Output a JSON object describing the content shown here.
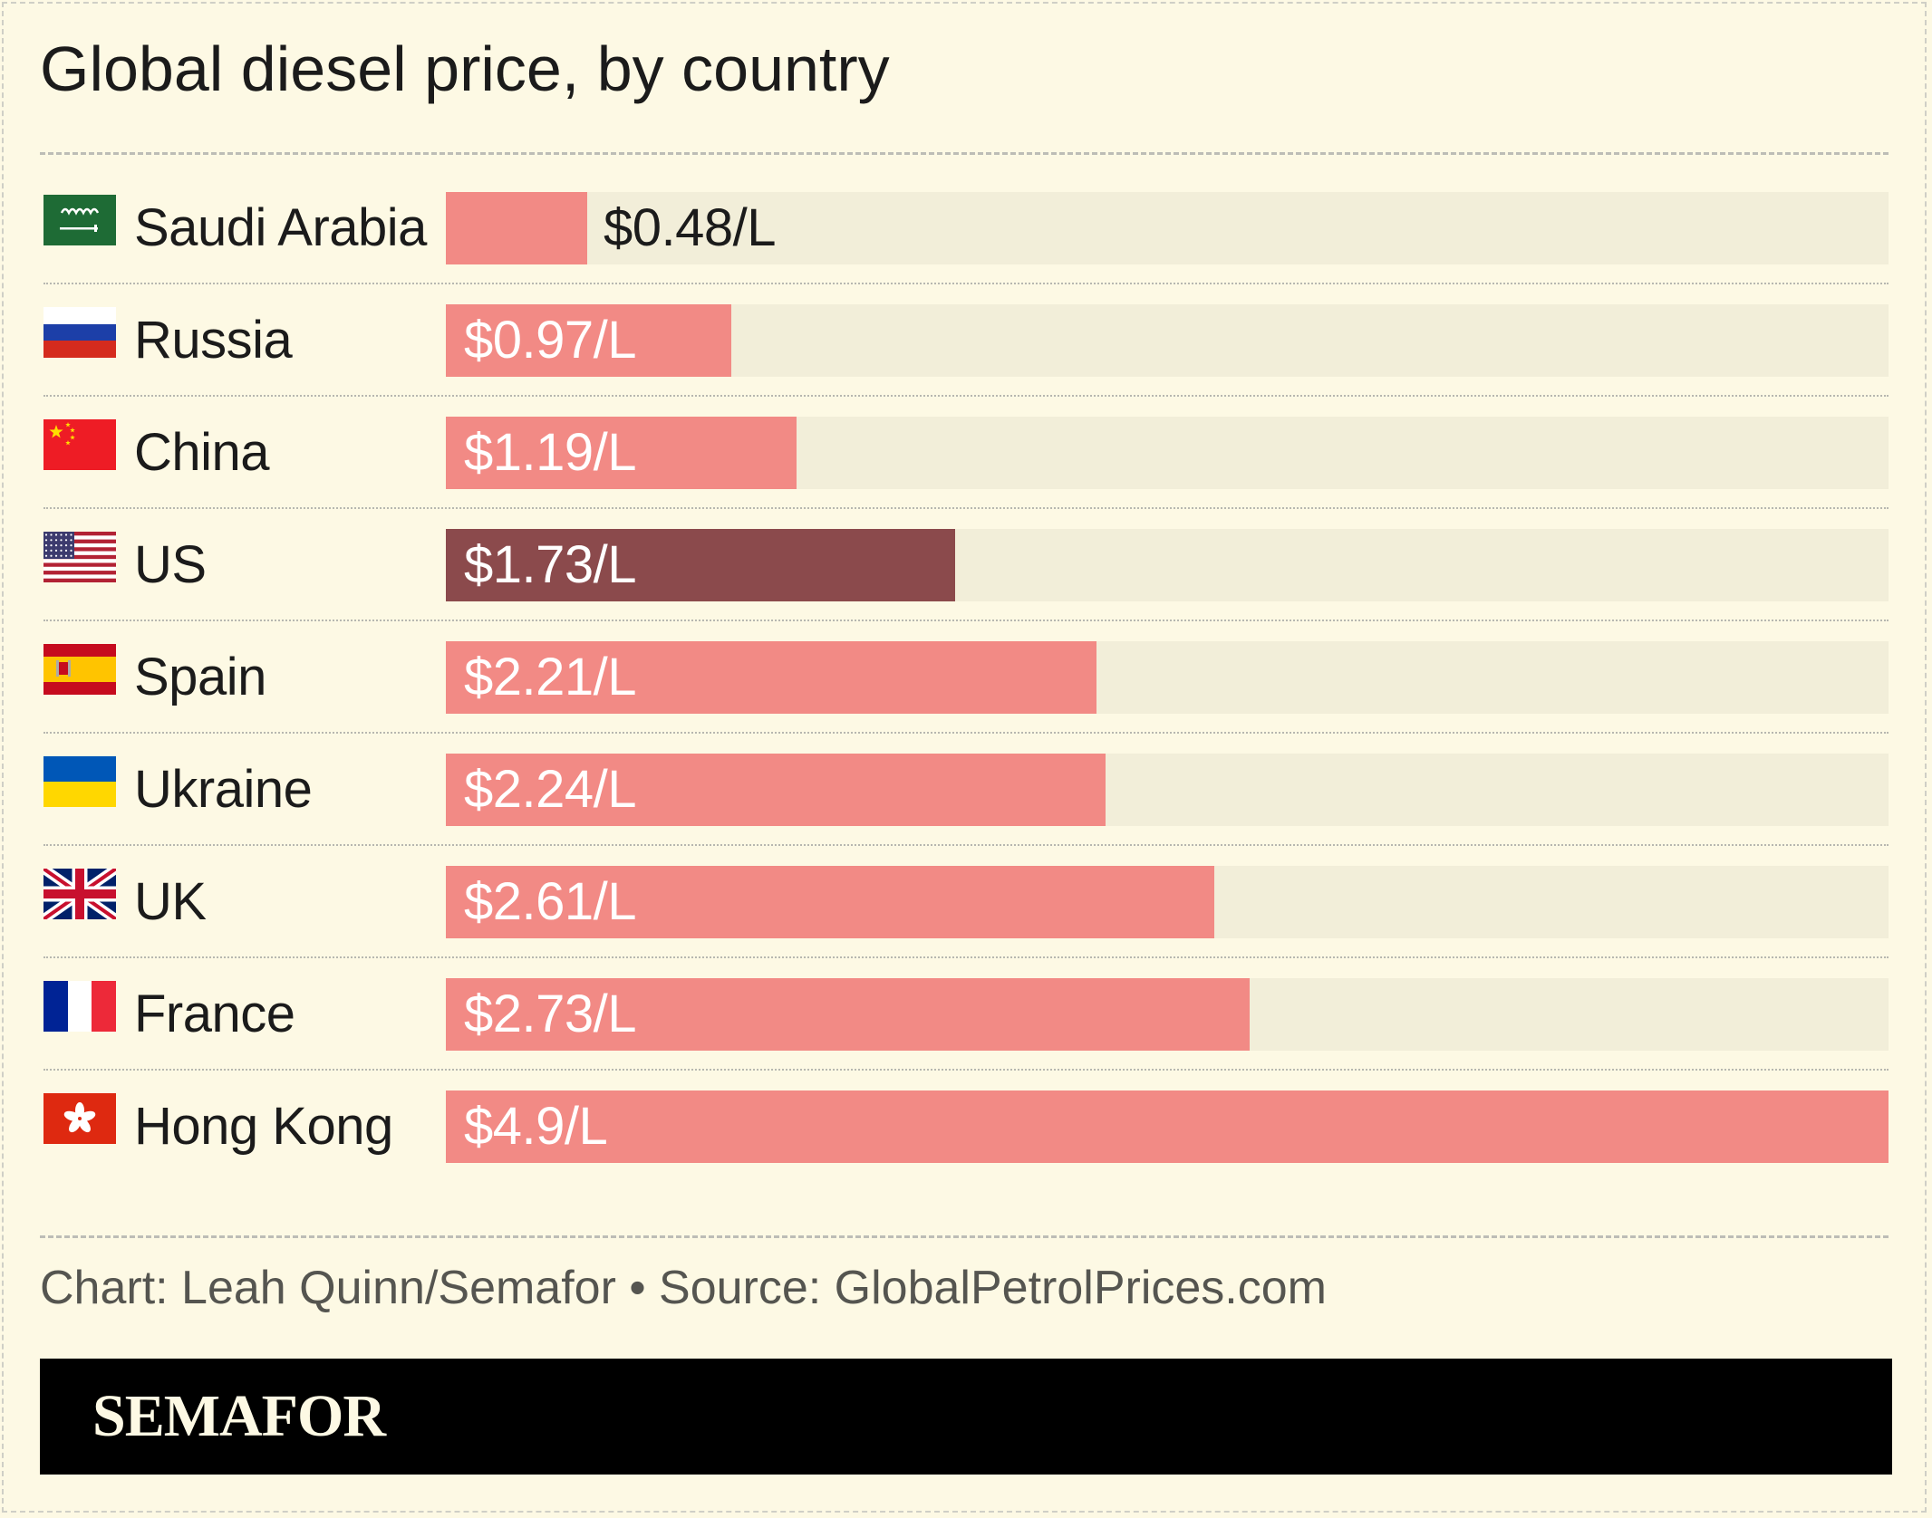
{
  "chart_data": {
    "type": "bar",
    "orientation": "horizontal",
    "title": "Global diesel price, by country",
    "categories": [
      "Saudi Arabia",
      "Russia",
      "China",
      "US",
      "Spain",
      "Ukraine",
      "UK",
      "France",
      "Hong Kong"
    ],
    "values": [
      0.48,
      0.97,
      1.19,
      1.73,
      2.21,
      2.24,
      2.61,
      2.73,
      4.9
    ],
    "value_labels": [
      "$0.48/L",
      "$0.97/L",
      "$1.19/L",
      "$1.73/L",
      "$2.21/L",
      "$2.24/L",
      "$2.61/L",
      "$2.73/L",
      "$4.9/L"
    ],
    "flags": [
      "saudi-arabia-flag-icon",
      "russia-flag-icon",
      "china-flag-icon",
      "us-flag-icon",
      "spain-flag-icon",
      "ukraine-flag-icon",
      "uk-flag-icon",
      "france-flag-icon",
      "hong-kong-flag-icon"
    ],
    "highlight": "US",
    "xlim": [
      0,
      4.9
    ],
    "colors": {
      "bar": "#f28a85",
      "highlight": "#8b4a4c",
      "track": "#f2eed9",
      "background": "#fdf9e4"
    }
  },
  "footer": {
    "source": "Chart: Leah Quinn/Semafor • Source: GlobalPetrolPrices.com",
    "brand": "SEMAFOR"
  }
}
